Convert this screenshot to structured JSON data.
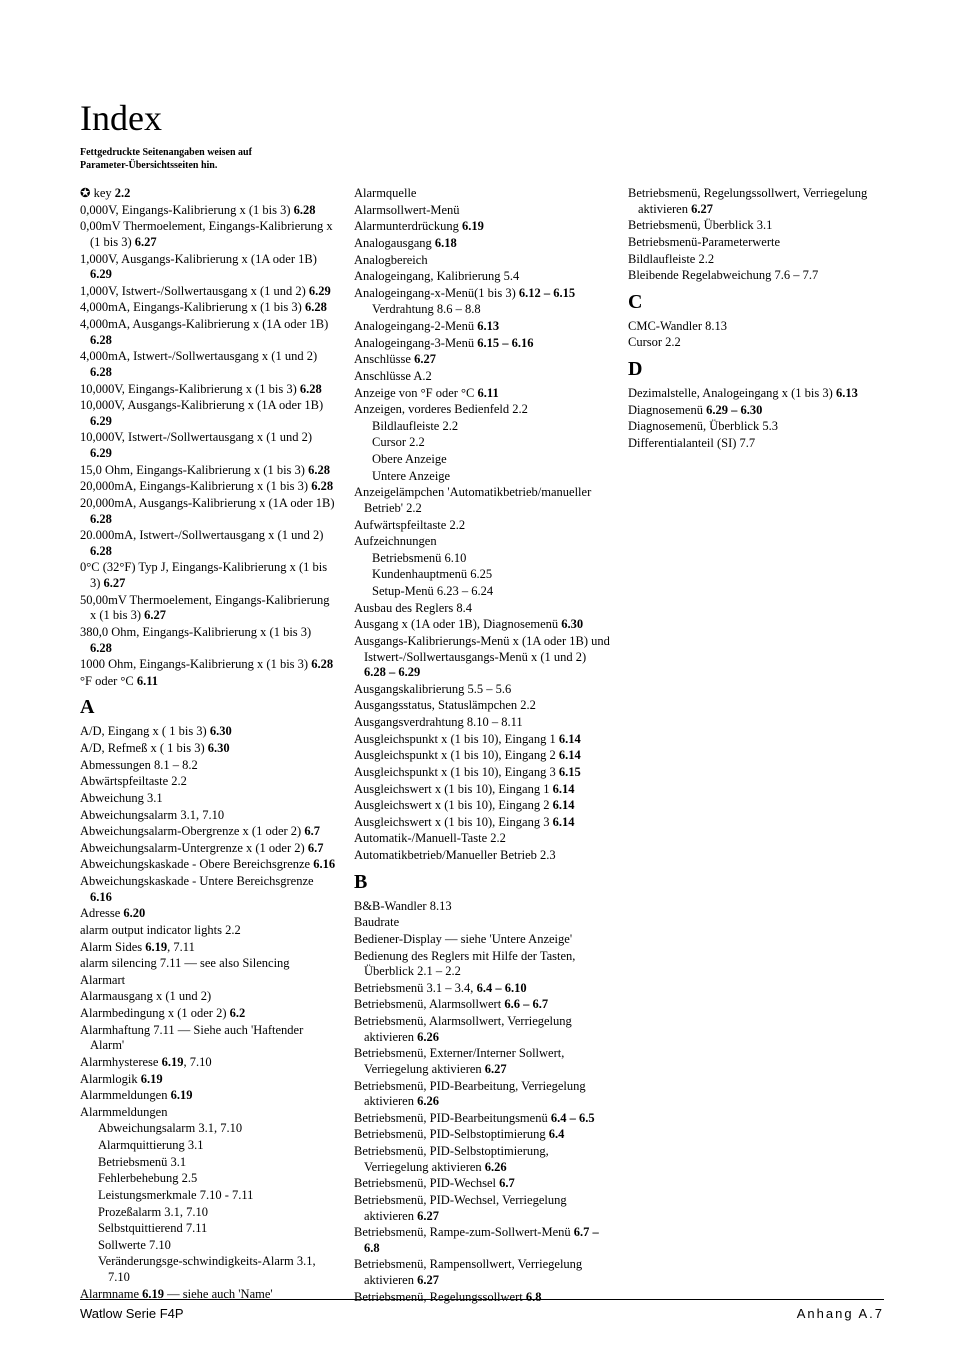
{
  "title": "Index",
  "note_line1": "Fettgedruckte Seitenangaben weisen auf",
  "note_line2": "Parameter-Übersichtsseiten hin.",
  "footer_left": "Watlow Serie F4P",
  "footer_right": "Anhang  A.7",
  "col1": {
    "pre": [
      {
        "t": "✪  key  ",
        "b": "2.2"
      },
      {
        "t": "0,000V, Eingangs-Kalibrierung x (1 bis 3)  ",
        "b": "6.28"
      },
      {
        "t": "0,00mV Thermoelement, Eingangs-Kalibrierung x (1 bis 3)  ",
        "b": "6.27"
      },
      {
        "t": "1,000V, Ausgangs-Kalibrierung x (1A oder 1B)  ",
        "b": "6.29"
      },
      {
        "t": "1,000V, Istwert-/Sollwertausgang x (1 und 2)  ",
        "b": "6.29"
      },
      {
        "t": "4,000mA, Eingangs-Kalibrierung x (1 bis 3)  ",
        "b": "6.28"
      },
      {
        "t": "4,000mA, Ausgangs-Kalibrierung x (1A oder 1B)  ",
        "b": "6.28"
      },
      {
        "t": "4,000mA, Istwert-/Sollwertausgang x (1 und 2)  ",
        "b": "6.28"
      },
      {
        "t": "10,000V, Eingangs-Kalibrierung x (1 bis 3)  ",
        "b": "6.28"
      },
      {
        "t": "10,000V, Ausgangs-Kalibrierung x (1A oder 1B)  ",
        "b": "6.29"
      },
      {
        "t": "10,000V, Istwert-/Sollwertausgang x (1 und 2)  ",
        "b": "6.29"
      },
      {
        "t": "15,0 Ohm, Eingangs-Kalibrierung x (1 bis 3)  ",
        "b": "6.28"
      },
      {
        "t": "20,000mA, Eingangs-Kalibrierung x (1 bis 3)  ",
        "b": "6.28"
      },
      {
        "t": "20,000mA, Ausgangs-Kalibrierung x (1A oder 1B)  ",
        "b": "6.28"
      },
      {
        "t": "20.000mA, Istwert-/Sollwertausgang x (1 und 2)  ",
        "b": "6.28"
      },
      {
        "t": "0°C (32°F) Typ J, Eingangs-Kalibrierung x (1 bis 3)  ",
        "b": "6.27"
      },
      {
        "t": "50,00mV Thermoelement, Eingangs-Kalibrierung x (1 bis 3)  ",
        "b": "6.27"
      },
      {
        "t": "380,0 Ohm, Eingangs-Kalibrierung x (1 bis 3)  ",
        "b": "6.28"
      },
      {
        "t": "1000 Ohm, Eingangs-Kalibrierung x (1 bis 3)  ",
        "b": "6.28"
      },
      {
        "t": "°F oder °C  ",
        "b": "6.11"
      }
    ],
    "A_head": "A",
    "A": [
      {
        "t": "A/D, Eingang x ( 1 bis 3)  ",
        "b": "6.30"
      },
      {
        "t": "A/D, Refmeß x ( 1 bis 3)  ",
        "b": "6.30"
      },
      {
        "t": "Abmessungen  8.1 – 8.2",
        "b": ""
      },
      {
        "t": "Abwärtspfeiltaste  2.2",
        "b": ""
      },
      {
        "t": "Abweichung  3.1",
        "b": ""
      },
      {
        "t": "Abweichungsalarm  3.1, 7.10",
        "b": ""
      },
      {
        "t": "Abweichungsalarm-Obergrenze x (1 oder 2)  ",
        "b": "6.7"
      },
      {
        "t": "Abweichungsalarm-Untergrenze x (1 oder 2)  ",
        "b": "6.7"
      },
      {
        "t": "Abweichungskaskade - Obere Bereichsgrenze  ",
        "b": "6.16"
      },
      {
        "t": "Abweichungskaskade - Untere Bereichsgrenze  ",
        "b": "6.16"
      },
      {
        "t": "Adresse  ",
        "b": "6.20"
      },
      {
        "t": "alarm output indicator lights  2.2",
        "b": ""
      },
      {
        "t": "Alarm Sides  ",
        "b": "6.19",
        "after": ", 7.11"
      }
    ]
  },
  "col2": {
    "items": [
      {
        "t": "alarm silencing  7.11 — see also Silencing"
      },
      {
        "t": "Alarmart"
      },
      {
        "t": "Alarmausgang x (1 und 2)"
      },
      {
        "t": "Alarmbedingung x (1 oder 2)  ",
        "b": "6.2"
      },
      {
        "t": "Alarmhaftung  7.11 — Siehe auch 'Haftender Alarm'"
      },
      {
        "t": "Alarmhysterese  ",
        "b": "6.19",
        "after": ", 7.10"
      },
      {
        "t": "Alarmlogik  ",
        "b": "6.19"
      },
      {
        "t": "Alarmmeldungen  ",
        "b": "6.19"
      },
      {
        "t": "Alarmmeldungen"
      },
      {
        "t": "Abweichungsalarm  3.1, 7.10",
        "sub": true
      },
      {
        "t": "Alarmquittierung  3.1",
        "sub": true
      },
      {
        "t": "Betriebsmenü  3.1",
        "sub": true
      },
      {
        "t": "Fehlerbehebung  2.5",
        "sub": true
      },
      {
        "t": "Leistungsmerkmale  7.10 - 7.11",
        "sub": true
      },
      {
        "t": "Prozeßalarm  3.1, 7.10",
        "sub": true
      },
      {
        "t": "Selbstquittierend  7.11",
        "sub": true
      },
      {
        "t": "Sollwerte  7.10",
        "sub": true
      },
      {
        "t": "Veränderungsge-schwindigkeits-Alarm  3.1, 7.10",
        "sub": true
      },
      {
        "t": "Alarmname  ",
        "b": "6.19",
        "after": " — siehe auch 'Name'"
      },
      {
        "t": "Alarmquelle"
      },
      {
        "t": "Alarmsollwert-Menü"
      },
      {
        "t": "Alarmunterdrückung  ",
        "b": "6.19"
      },
      {
        "t": "Analogausgang  ",
        "b": "6.18"
      },
      {
        "t": "Analogbereich"
      },
      {
        "t": "Analogeingang, Kalibrierung  5.4"
      },
      {
        "t": "Analogeingang-x-Menü(1 bis 3)  ",
        "b": "6.12 – 6.15"
      },
      {
        "t": "Verdrahtung  8.6 – 8.8",
        "sub": true
      },
      {
        "t": "Analogeingang-2-Menü  ",
        "b": "6.13"
      },
      {
        "t": "Analogeingang-3-Menü  ",
        "b": "6.15 – 6.16"
      },
      {
        "t": "Anschlüsse  ",
        "b": "6.27"
      },
      {
        "t": "Anschlüsse  A.2"
      },
      {
        "t": "Anzeige von °F oder °C  ",
        "b": "6.11"
      },
      {
        "t": "Anzeigen, vorderes    Bedienfeld  2.2"
      },
      {
        "t": "Bildlaufleiste  2.2",
        "sub": true
      },
      {
        "t": "Cursor  2.2",
        "sub": true
      },
      {
        "t": "Obere Anzeige",
        "sub": true
      },
      {
        "t": "Untere Anzeige",
        "sub": true
      },
      {
        "t": "Anzeigelämpchen 'Automatikbetrieb/manueller Betrieb'  2.2"
      },
      {
        "t": "Aufwärtspfeiltaste  2.2"
      },
      {
        "t": "Aufzeichnungen"
      },
      {
        "t": "Betriebsmenü  6.10",
        "sub": true
      },
      {
        "t": "Kundenhauptmenü  6.25",
        "sub": true
      },
      {
        "t": "Setup-Menü  6.23 – 6.24",
        "sub": true
      },
      {
        "t": "Ausbau des Reglers  8.4"
      },
      {
        "t": "Ausgang x (1A oder 1B), Diagnosemenü  ",
        "b": "6.30"
      },
      {
        "t": "Ausgangs-Kalibrierungs-Menü x (1A oder 1B) und Istwert-/Sollwertausgangs-Menü x (1 und 2)  ",
        "b": "6.28 – 6.29"
      },
      {
        "t": "Ausgangskalibrierung  5.5 – 5.6"
      },
      {
        "t": "Ausgangsstatus, Statuslämpchen  2.2"
      },
      {
        "t": "Ausgangsverdrahtung  8.10 – 8.11"
      },
      {
        "t": "Ausgleichspunkt x (1 bis 10), Eingang 1  ",
        "b": "6.14"
      }
    ]
  },
  "col3": {
    "A_cont": [
      {
        "t": "Ausgleichspunkt x (1 bis 10), Eingang 2  ",
        "b": "6.14"
      },
      {
        "t": "Ausgleichspunkt x (1 bis 10), Eingang 3  ",
        "b": "6.15"
      },
      {
        "t": "Ausgleichswert x (1 bis 10), Eingang 1  ",
        "b": "6.14"
      },
      {
        "t": "Ausgleichswert x (1 bis 10), Eingang 2  ",
        "b": "6.14"
      },
      {
        "t": "Ausgleichswert x (1 bis 10), Eingang 3  ",
        "b": "6.14"
      },
      {
        "t": "Automatik-/Manuell-Taste  2.2"
      },
      {
        "t": "Automatikbetrieb/Manueller Betrieb  2.3"
      }
    ],
    "B_head": "B",
    "B": [
      {
        "t": "B&B-Wandler  8.13"
      },
      {
        "t": "Baudrate"
      },
      {
        "t": "Bediener-Display — siehe 'Untere Anzeige'"
      },
      {
        "t": "Bedienung des Reglers mit Hilfe der Tasten, Überblick  2.1 – 2.2"
      },
      {
        "t": "Betriebsmenü  3.1 – 3.4, ",
        "b": "6.4 – 6.10"
      },
      {
        "t": "Betriebsmenü, Alarmsollwert  ",
        "b": "6.6 – 6.7"
      },
      {
        "t": "Betriebsmenü, Alarmsollwert, Verriegelung aktivieren  ",
        "b": "6.26"
      },
      {
        "t": "Betriebsmenü, Externer/Interner Sollwert, Verriegelung aktivieren  ",
        "b": "6.27"
      },
      {
        "t": "Betriebsmenü, PID-Bearbeitung, Verriegelung aktivieren  ",
        "b": "6.26"
      },
      {
        "t": "Betriebsmenü, PID-Bearbeitungsmenü  ",
        "b": "6.4 – 6.5"
      },
      {
        "t": "Betriebsmenü, PID-Selbstoptimierung  ",
        "b": "6.4"
      },
      {
        "t": "Betriebsmenü, PID-Selbstoptimierung, Verriegelung aktivieren  ",
        "b": "6.26"
      },
      {
        "t": "Betriebsmenü, PID-Wechsel  ",
        "b": "6.7"
      },
      {
        "t": "Betriebsmenü, PID-Wechsel, Verriegelung aktivieren  ",
        "b": "6.27"
      },
      {
        "t": "Betriebsmenü, Rampe-zum-Sollwert-Menü  ",
        "b": "6.7 – 6.8"
      },
      {
        "t": "Betriebsmenü, Rampensollwert, Verriegelung aktivieren  ",
        "b": "6.27"
      },
      {
        "t": "Betriebsmenü, Regelungssollwert  ",
        "b": "6.8"
      },
      {
        "t": "Betriebsmenü, Regelungssollwert, Verriegelung aktivieren  ",
        "b": "6.27"
      },
      {
        "t": "Betriebsmenü, Überblick  3.1"
      },
      {
        "t": "Betriebsmenü-Parameterwerte"
      },
      {
        "t": "Bildlaufleiste  2.2"
      },
      {
        "t": "Bleibende Regelabweichung  7.6 – 7.7"
      }
    ],
    "C_head": "C",
    "C": [
      {
        "t": "CMC-Wandler  8.13"
      },
      {
        "t": "Cursor  2.2"
      }
    ],
    "D_head": "D",
    "D": [
      {
        "t": "Dezimalstelle, Analogeingang x (1 bis 3)  ",
        "b": "6.13"
      },
      {
        "t": "Diagnosemenü  ",
        "b": "6.29 – 6.30"
      },
      {
        "t": "Diagnosemenü, Überblick  5.3"
      },
      {
        "t": "Differentialanteil (SI)  7.7"
      }
    ]
  }
}
